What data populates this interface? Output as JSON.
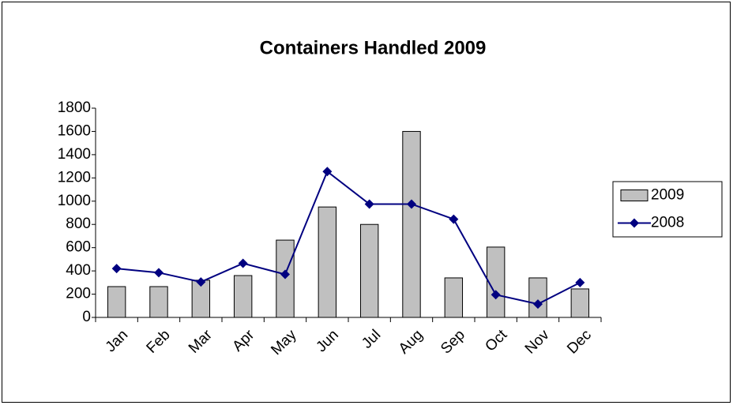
{
  "chart_data": {
    "type": "bar",
    "title": "Containers Handled 2009",
    "categories": [
      "Jan",
      "Feb",
      "Mar",
      "Apr",
      "May",
      "Jun",
      "Jul",
      "Aug",
      "Sep",
      "Oct",
      "Nov",
      "Dec"
    ],
    "series": [
      {
        "name": "2009",
        "type": "bar",
        "color": "#c0c0c0",
        "values": [
          265,
          265,
          320,
          360,
          665,
          950,
          800,
          1600,
          340,
          605,
          340,
          245
        ]
      },
      {
        "name": "2008",
        "type": "line",
        "color": "#000080",
        "values": [
          420,
          385,
          305,
          465,
          370,
          1255,
          975,
          975,
          845,
          195,
          115,
          300
        ]
      }
    ],
    "ylim": [
      0,
      1800
    ],
    "yticks": [
      0,
      200,
      400,
      600,
      800,
      1000,
      1200,
      1400,
      1600,
      1800
    ],
    "grid": false,
    "legend": "right"
  }
}
